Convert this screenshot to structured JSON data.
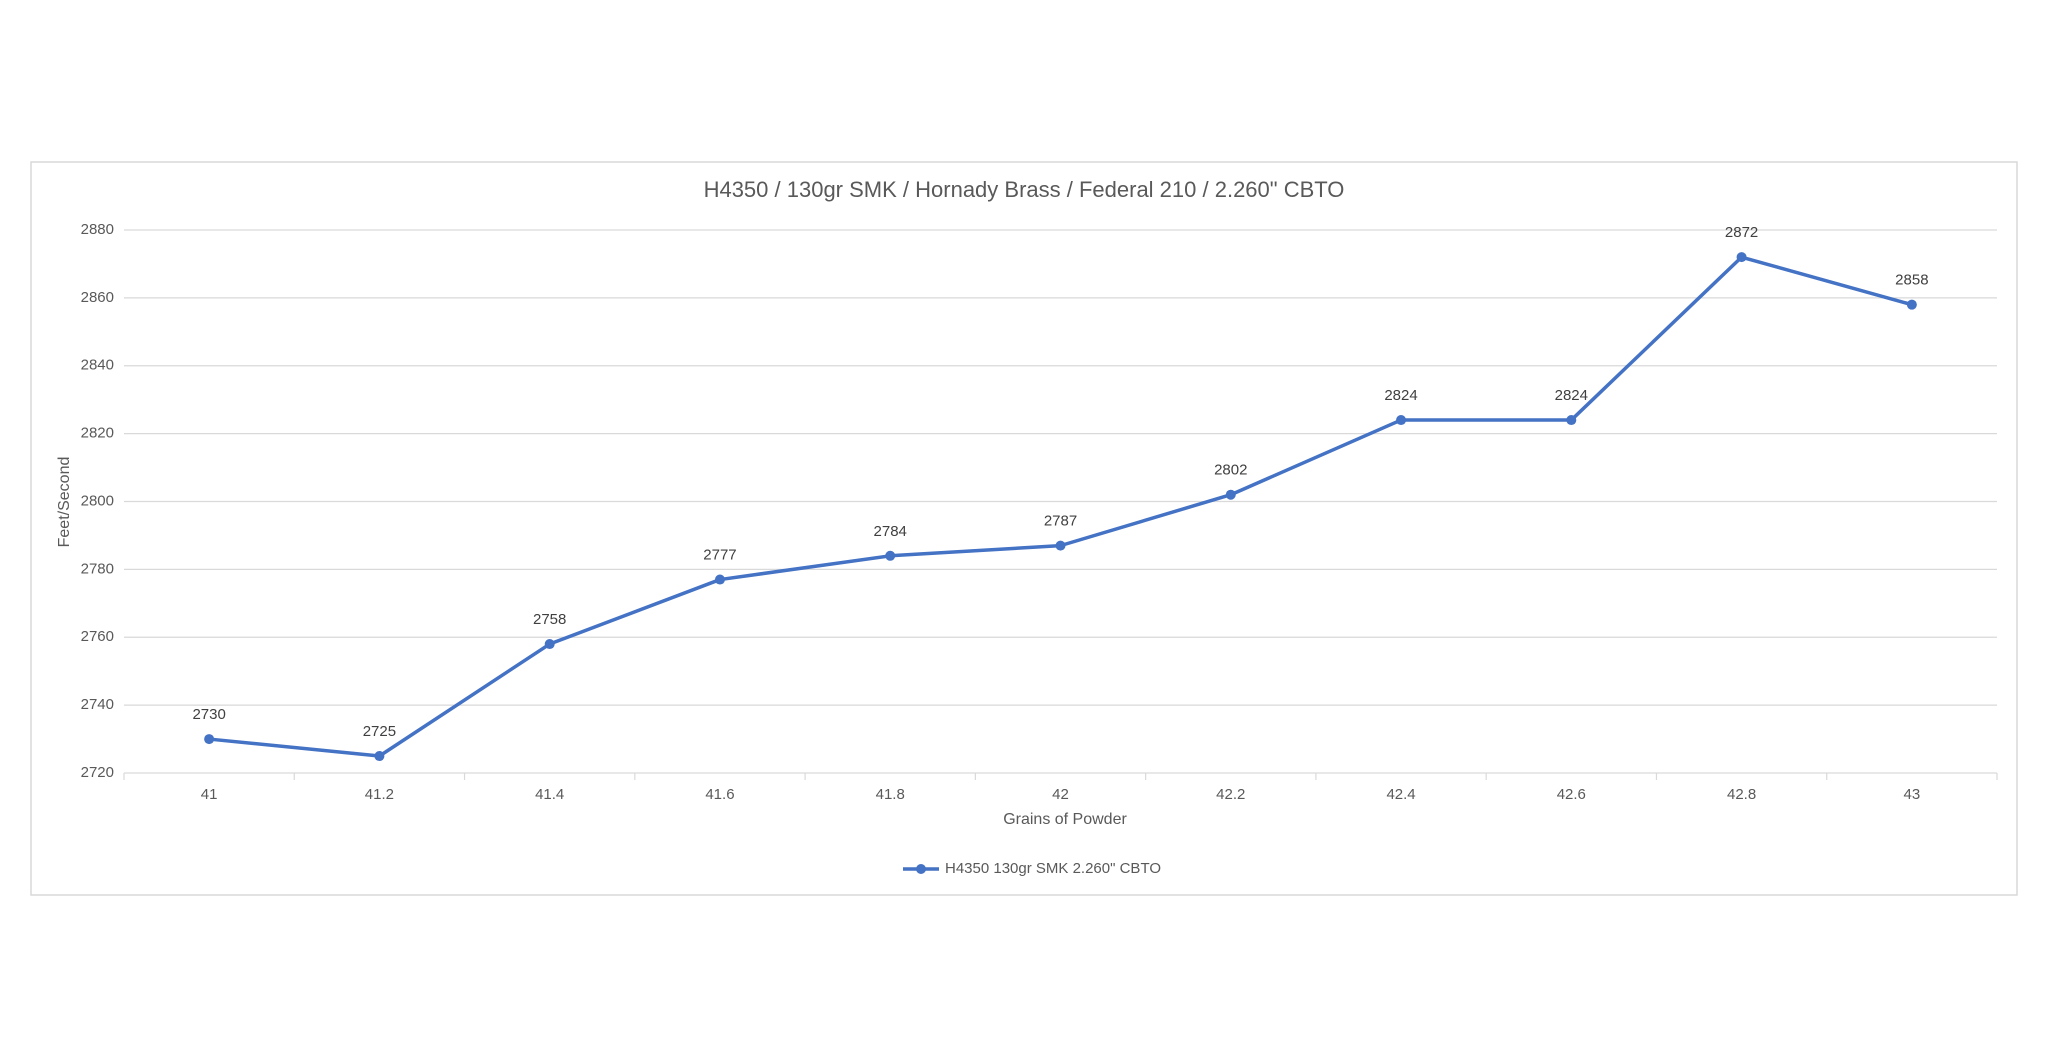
{
  "chart_data": {
    "type": "line",
    "title": "H4350 / 130gr SMK / Hornady Brass / Federal 210 / 2.260\" CBTO",
    "x_label": "Grains of Powder",
    "y_label": "Feet/Second",
    "categories": [
      "41",
      "41.2",
      "41.4",
      "41.6",
      "41.8",
      "42",
      "42.2",
      "42.4",
      "42.6",
      "42.8",
      "43"
    ],
    "series": [
      {
        "name": "H4350 130gr SMK 2.260\" CBTO",
        "color": "#4472c4",
        "values": [
          2730,
          2725,
          2758,
          2777,
          2784,
          2787,
          2802,
          2824,
          2824,
          2872,
          2858
        ]
      }
    ],
    "ylim": [
      2720,
      2880
    ],
    "yticks": [
      2720,
      2740,
      2760,
      2780,
      2800,
      2820,
      2840,
      2860,
      2880
    ],
    "grid": true,
    "legend": "bottom",
    "data_labels": true
  }
}
